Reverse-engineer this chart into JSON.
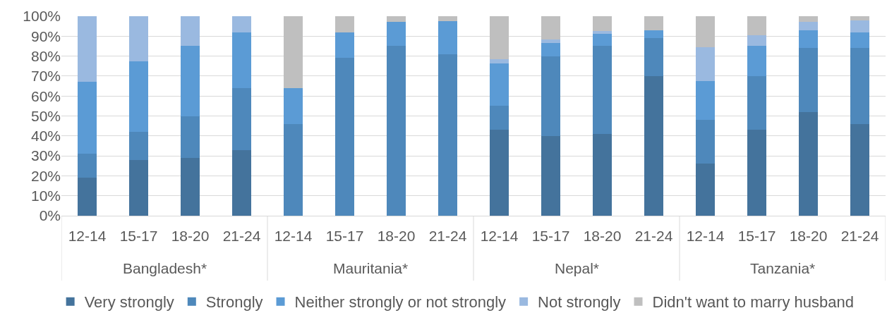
{
  "chart_data": {
    "type": "bar",
    "stacked": true,
    "categories": [
      "12-14",
      "15-17",
      "18-20",
      "21-24",
      "12-14",
      "15-17",
      "18-20",
      "21-24",
      "12-14",
      "15-17",
      "18-20",
      "21-24",
      "12-14",
      "15-17",
      "18-20",
      "21-24"
    ],
    "annotations": [
      "Bangladesh*",
      "Mauritania*",
      "Nepal*",
      "Tanzania*"
    ],
    "series": [
      {
        "name": "Very strongly",
        "color": "#44739c",
        "values": [
          19,
          28,
          29,
          33,
          0,
          0,
          0,
          0,
          43,
          40,
          41,
          70,
          26,
          43,
          52,
          46
        ]
      },
      {
        "name": "Strongly",
        "color": "#4e88bb",
        "values": [
          12,
          14,
          21,
          31,
          46,
          79,
          85,
          81,
          12,
          40,
          44,
          19,
          22,
          27,
          32,
          38
        ]
      },
      {
        "name": "Neither strongly or not strongly",
        "color": "#5b9bd5",
        "values": [
          36,
          35.5,
          35,
          28,
          18,
          13,
          12,
          16.5,
          21.5,
          6.5,
          6,
          4,
          19.5,
          15,
          9,
          8
        ]
      },
      {
        "name": "Not strongly",
        "color": "#9ab9e0",
        "values": [
          33,
          22.5,
          15,
          8,
          0,
          0,
          0,
          0,
          2,
          2,
          1.5,
          0,
          17,
          5.5,
          4,
          6
        ]
      },
      {
        "name": "Didn't want to marry husband",
        "color": "#bfbfbf",
        "values": [
          0,
          0,
          0,
          0,
          36,
          8,
          3,
          2.5,
          21.5,
          11.5,
          7.5,
          7,
          15.5,
          9.5,
          3,
          2
        ]
      }
    ],
    "ylim": [
      0,
      100
    ],
    "yticks": [
      {
        "value": 0,
        "label": "0%"
      },
      {
        "value": 10,
        "label": "10%"
      },
      {
        "value": 20,
        "label": "20%"
      },
      {
        "value": 30,
        "label": "30%"
      },
      {
        "value": 40,
        "label": "40%"
      },
      {
        "value": 50,
        "label": "50%"
      },
      {
        "value": 60,
        "label": "60%"
      },
      {
        "value": 70,
        "label": "70%"
      },
      {
        "value": 80,
        "label": "80%"
      },
      {
        "value": 90,
        "label": "90%"
      },
      {
        "value": 100,
        "label": "100%"
      }
    ],
    "grid": "y",
    "legend": "bottom"
  }
}
